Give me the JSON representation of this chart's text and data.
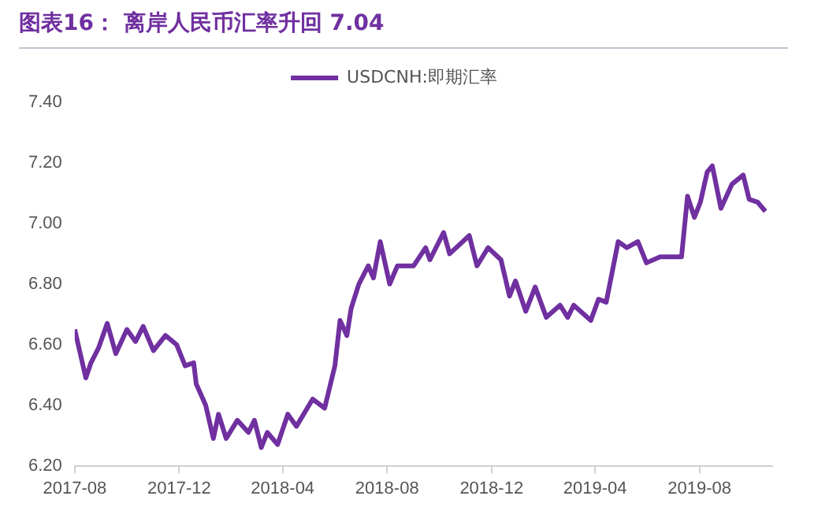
{
  "chart_data": {
    "type": "line",
    "title": "图表16：  离岸人民币汇率升回 7.04",
    "x": [
      "2017-08-01",
      "2017-08-14",
      "2017-08-20",
      "2017-08-29",
      "2017-09-08",
      "2017-09-18",
      "2017-10-01",
      "2017-10-11",
      "2017-10-20",
      "2017-11-01",
      "2017-11-15",
      "2017-11-28",
      "2017-12-08",
      "2017-12-18",
      "2017-12-21",
      "2018-01-01",
      "2018-01-10",
      "2018-01-16",
      "2018-01-25",
      "2018-02-07",
      "2018-02-20",
      "2018-02-27",
      "2018-03-07",
      "2018-03-14",
      "2018-03-26",
      "2018-04-07",
      "2018-04-17",
      "2018-05-06",
      "2018-05-20",
      "2018-06-01",
      "2018-06-07",
      "2018-06-15",
      "2018-06-20",
      "2018-06-29",
      "2018-07-10",
      "2018-07-16",
      "2018-07-24",
      "2018-08-04",
      "2018-08-13",
      "2018-09-01",
      "2018-09-15",
      "2018-09-20",
      "2018-10-06",
      "2018-10-13",
      "2018-11-05",
      "2018-11-14",
      "2018-11-27",
      "2018-12-12",
      "2018-12-22",
      "2018-12-29",
      "2019-01-10",
      "2019-01-21",
      "2019-02-03",
      "2019-02-19",
      "2019-02-28",
      "2019-03-07",
      "2019-03-27",
      "2019-04-05",
      "2019-04-14",
      "2019-04-28",
      "2019-05-08",
      "2019-05-21",
      "2019-05-31",
      "2019-06-16",
      "2019-07-11",
      "2019-07-18",
      "2019-07-26",
      "2019-08-02",
      "2019-08-10",
      "2019-08-16",
      "2019-08-26",
      "2019-09-08",
      "2019-09-21",
      "2019-09-28",
      "2019-10-08",
      "2019-10-17"
    ],
    "series": [
      {
        "name": "USDCNH:即期汇率",
        "color": "#7030a0",
        "values": [
          6.65,
          6.49,
          6.54,
          6.59,
          6.67,
          6.57,
          6.65,
          6.61,
          6.66,
          6.58,
          6.63,
          6.6,
          6.53,
          6.54,
          6.47,
          6.4,
          6.29,
          6.37,
          6.29,
          6.35,
          6.31,
          6.35,
          6.26,
          6.31,
          6.27,
          6.37,
          6.33,
          6.42,
          6.39,
          6.53,
          6.68,
          6.63,
          6.72,
          6.8,
          6.86,
          6.82,
          6.94,
          6.8,
          6.86,
          6.86,
          6.92,
          6.88,
          6.97,
          6.9,
          6.96,
          6.86,
          6.92,
          6.88,
          6.76,
          6.81,
          6.71,
          6.79,
          6.69,
          6.73,
          6.69,
          6.73,
          6.68,
          6.75,
          6.74,
          6.94,
          6.92,
          6.94,
          6.87,
          6.89,
          6.89,
          7.09,
          7.02,
          7.07,
          7.17,
          7.19,
          7.05,
          7.13,
          7.16,
          7.08,
          7.07,
          7.04
        ]
      }
    ],
    "xlim": [
      "2017-08-01",
      "2019-10-25"
    ],
    "xticks": [
      "2017-08",
      "2017-12",
      "2018-04",
      "2018-08",
      "2018-12",
      "2019-04",
      "2019-08"
    ],
    "ylim": [
      6.2,
      7.4
    ],
    "yticks": [
      {
        "value": 6.2,
        "label": "6.20"
      },
      {
        "value": 6.4,
        "label": "6.40"
      },
      {
        "value": 6.6,
        "label": "6.60"
      },
      {
        "value": 6.8,
        "label": "6.80"
      },
      {
        "value": 7.0,
        "label": "7.00"
      },
      {
        "value": 7.2,
        "label": "7.20"
      },
      {
        "value": 7.4,
        "label": "7.40"
      }
    ],
    "grid": false,
    "legend": "top",
    "marker": "none",
    "line_style": "solid"
  }
}
